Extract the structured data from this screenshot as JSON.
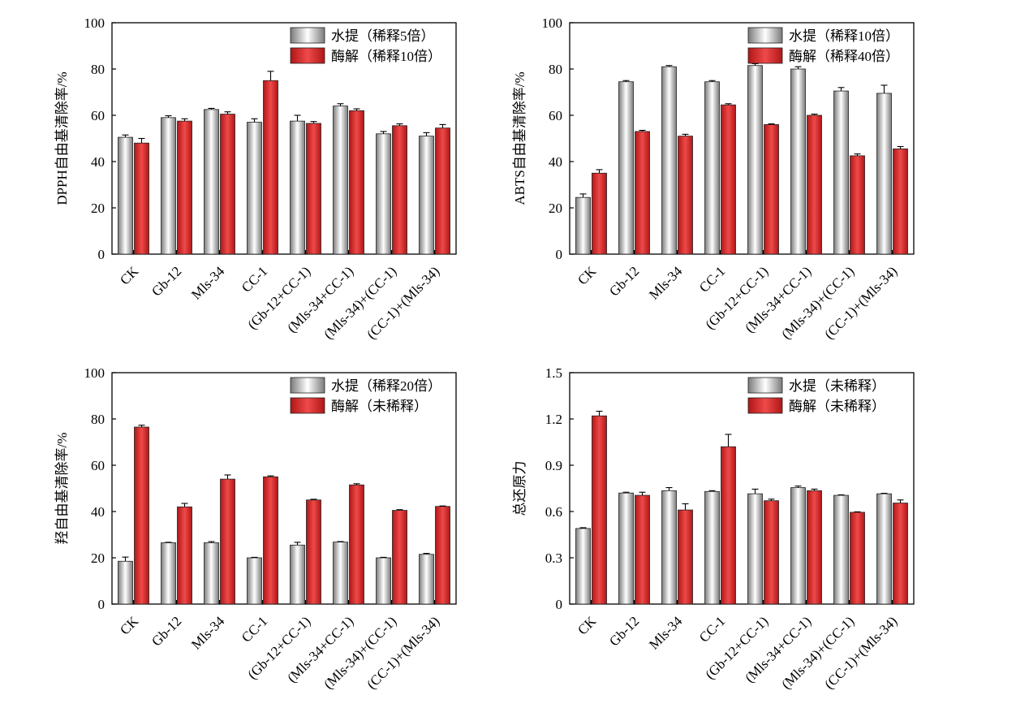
{
  "colors": {
    "gray_dark": "#7a7a7a",
    "gray_light": "#ffffff",
    "red_dark": "#b01616",
    "red_light": "#ef4a4a",
    "axis": "#000000"
  },
  "categories": [
    "CK",
    "Gb-12",
    "Mls-34",
    "CC-1",
    "(Gb-12+CC-1)",
    "(Mls-34+CC-1)",
    "(Mls-34)+(CC-1)",
    "(CC-1)+(Mls-34)"
  ],
  "chart_data": [
    {
      "type": "bar",
      "ylabel": "DPPH自由基清除率/%",
      "ylim": [
        0,
        100
      ],
      "yticks": [
        "0",
        "20",
        "40",
        "60",
        "80",
        "100"
      ],
      "series": [
        {
          "name": "水提（稀释5倍）",
          "style": "gray",
          "values": [
            50.5,
            59,
            62.5,
            57,
            57.5,
            64,
            52,
            51
          ],
          "errors": [
            1,
            0.8,
            0.5,
            1.5,
            2.5,
            1,
            1,
            1.5
          ]
        },
        {
          "name": "酶解（稀释10倍）",
          "style": "red",
          "values": [
            48,
            57.5,
            60.5,
            75,
            56.5,
            62,
            55.5,
            54.5
          ],
          "errors": [
            2,
            1,
            1,
            4,
            0.8,
            0.8,
            0.8,
            1.5
          ]
        }
      ],
      "legend_position": "top-right"
    },
    {
      "type": "bar",
      "ylabel": "ABTS自由基清除率/%",
      "ylim": [
        0,
        100
      ],
      "yticks": [
        "0",
        "20",
        "40",
        "60",
        "80",
        "100"
      ],
      "series": [
        {
          "name": "水提（稀释10倍）",
          "style": "gray",
          "values": [
            24.5,
            74.5,
            81,
            74.5,
            81.5,
            80,
            70.5,
            69.5
          ],
          "errors": [
            1.5,
            0.5,
            0.5,
            0.5,
            0.8,
            1,
            1.5,
            3.5
          ]
        },
        {
          "name": "酶解（稀释40倍）",
          "style": "red",
          "values": [
            35,
            53,
            51,
            64.5,
            56,
            60,
            42.5,
            45.5
          ],
          "errors": [
            1.5,
            0.5,
            0.8,
            0.5,
            0.3,
            0.5,
            0.8,
            1
          ]
        }
      ],
      "legend_position": "top-right"
    },
    {
      "type": "bar",
      "ylabel": "羟自由基清除率/%",
      "ylim": [
        0,
        100
      ],
      "yticks": [
        "0",
        "20",
        "40",
        "60",
        "80",
        "100"
      ],
      "series": [
        {
          "name": "水提（稀释20倍）",
          "style": "gray",
          "values": [
            18.5,
            26.5,
            26.5,
            20,
            25.5,
            26.8,
            20,
            21.5
          ],
          "errors": [
            1.8,
            0.2,
            0.5,
            0.2,
            1.2,
            0.2,
            0.2,
            0.4
          ]
        },
        {
          "name": "酶解（未稀释）",
          "style": "red",
          "values": [
            76.5,
            42,
            54,
            55,
            45,
            51.5,
            40.5,
            42.2
          ],
          "errors": [
            0.8,
            1.5,
            1.8,
            0.4,
            0.3,
            0.5,
            0.3,
            0.2
          ]
        }
      ],
      "legend_position": "top-right"
    },
    {
      "type": "bar",
      "ylabel": "总还原力",
      "ylim": [
        0,
        1.5
      ],
      "yticks": [
        "0",
        "0.3",
        "0.6",
        "0.9",
        "1.2",
        "1.5"
      ],
      "series": [
        {
          "name": "水提（未稀释）",
          "style": "gray",
          "values": [
            0.49,
            0.72,
            0.735,
            0.73,
            0.715,
            0.755,
            0.705,
            0.715
          ],
          "errors": [
            0.005,
            0.005,
            0.02,
            0.005,
            0.03,
            0.01,
            0.003,
            0.003
          ]
        },
        {
          "name": "酶解（未稀释）",
          "style": "red",
          "values": [
            1.22,
            0.705,
            0.61,
            1.02,
            0.67,
            0.735,
            0.595,
            0.655
          ],
          "errors": [
            0.03,
            0.02,
            0.04,
            0.08,
            0.01,
            0.01,
            0.003,
            0.02
          ]
        }
      ],
      "legend_position": "top-right"
    }
  ]
}
